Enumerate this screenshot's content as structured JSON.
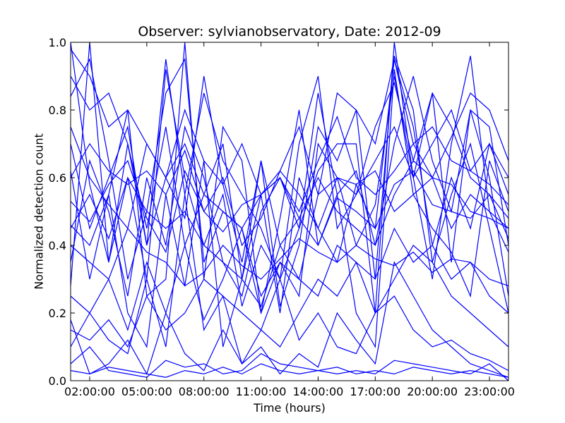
{
  "chart_data": {
    "type": "line",
    "title": "Observer: sylvianobservatory, Date: 2012-09",
    "xlabel": "Time (hours)",
    "ylabel": "Normalized detection count",
    "xlim": [
      "01:00:00",
      "24:00:00"
    ],
    "ylim": [
      0.0,
      1.0
    ],
    "xticks": [
      "02:00:00",
      "05:00:00",
      "08:00:00",
      "11:00:00",
      "14:00:00",
      "17:00:00",
      "20:00:00",
      "23:00:00"
    ],
    "yticks": [
      "0.0",
      "0.2",
      "0.4",
      "0.6",
      "0.8",
      "1.0"
    ],
    "line_color": "#0000ff",
    "grid": false,
    "legend": false,
    "x": [
      "01:00:00",
      "02:00:00",
      "03:00:00",
      "04:00:00",
      "05:00:00",
      "06:00:00",
      "07:00:00",
      "08:00:00",
      "09:00:00",
      "10:00:00",
      "11:00:00",
      "12:00:00",
      "13:00:00",
      "14:00:00",
      "15:00:00",
      "16:00:00",
      "17:00:00",
      "18:00:00",
      "19:00:00",
      "20:00:00",
      "21:00:00",
      "22:00:00",
      "23:00:00",
      "24:00:00"
    ],
    "series": [
      {
        "values": [
          0.28,
          1.0,
          0.35,
          0.6,
          0.3,
          0.92,
          0.6,
          0.4,
          0.55,
          0.22,
          0.4,
          0.3,
          0.45,
          0.62,
          0.7,
          0.7,
          0.2,
          1.0,
          0.6,
          0.85,
          0.35,
          0.8,
          0.6,
          0.25
        ]
      },
      {
        "values": [
          0.46,
          0.4,
          0.55,
          0.2,
          0.1,
          0.55,
          0.28,
          0.65,
          0.1,
          0.3,
          0.55,
          0.2,
          0.6,
          0.45,
          0.35,
          0.58,
          0.45,
          0.95,
          0.75,
          0.4,
          0.6,
          0.45,
          0.7,
          0.55
        ]
      },
      {
        "values": [
          0.84,
          0.95,
          0.65,
          0.3,
          0.5,
          0.85,
          0.95,
          0.35,
          0.5,
          0.45,
          0.2,
          0.35,
          0.25,
          0.7,
          0.6,
          0.4,
          0.52,
          0.9,
          0.6,
          0.3,
          0.7,
          0.96,
          0.5,
          0.45
        ]
      },
      {
        "values": [
          0.18,
          0.02,
          0.05,
          0.12,
          0.02,
          0.2,
          0.08,
          0.03,
          0.15,
          0.05,
          0.1,
          0.02,
          0.08,
          0.04,
          0.2,
          0.12,
          0.05,
          0.35,
          0.25,
          0.15,
          0.1,
          0.05,
          0.03,
          0.01
        ]
      },
      {
        "values": [
          0.05,
          0.1,
          0.03,
          0.02,
          0.01,
          0.06,
          0.04,
          0.05,
          0.02,
          0.03,
          0.08,
          0.05,
          0.04,
          0.03,
          0.02,
          0.03,
          0.02,
          0.06,
          0.05,
          0.04,
          0.03,
          0.02,
          0.05,
          0.0
        ]
      },
      {
        "values": [
          0.62,
          0.3,
          0.55,
          0.8,
          0.25,
          0.3,
          1.0,
          0.3,
          0.75,
          0.65,
          0.2,
          0.48,
          0.8,
          0.4,
          0.55,
          0.2,
          0.1,
          0.92,
          0.55,
          0.45,
          0.38,
          0.25,
          0.65,
          0.5
        ]
      },
      {
        "values": [
          1.0,
          0.58,
          0.35,
          0.7,
          0.45,
          0.75,
          0.4,
          0.55,
          0.7,
          0.3,
          0.65,
          0.4,
          0.3,
          0.55,
          0.85,
          0.8,
          0.3,
          0.96,
          0.8,
          0.35,
          0.55,
          0.7,
          0.45,
          0.2
        ]
      },
      {
        "values": [
          0.1,
          0.2,
          0.12,
          0.08,
          0.3,
          0.1,
          0.55,
          0.15,
          0.25,
          0.05,
          0.15,
          0.3,
          0.12,
          0.2,
          0.1,
          0.08,
          0.2,
          0.25,
          0.15,
          0.1,
          0.12,
          0.08,
          0.06,
          0.03
        ]
      },
      {
        "values": [
          0.35,
          0.65,
          0.5,
          0.25,
          0.6,
          0.4,
          0.75,
          0.6,
          0.35,
          0.25,
          0.5,
          0.6,
          0.45,
          0.85,
          0.55,
          0.62,
          0.4,
          0.7,
          0.9,
          0.65,
          0.5,
          0.8,
          0.75,
          0.4
        ]
      },
      {
        "values": [
          0.7,
          0.45,
          0.6,
          0.75,
          0.4,
          0.95,
          0.55,
          0.85,
          0.65,
          0.55,
          0.45,
          0.3,
          0.7,
          0.9,
          0.45,
          0.55,
          0.75,
          0.88,
          0.65,
          0.85,
          0.75,
          0.6,
          0.55,
          0.48
        ]
      },
      {
        "values": [
          0.53,
          0.47,
          0.58,
          0.65,
          0.48,
          0.38,
          0.62,
          0.5,
          0.44,
          0.52,
          0.55,
          0.6,
          0.48,
          0.4,
          0.54,
          0.5,
          0.45,
          0.58,
          0.62,
          0.52,
          0.5,
          0.48,
          0.55,
          0.42
        ]
      },
      {
        "values": [
          0.4,
          0.35,
          0.3,
          0.45,
          0.38,
          0.35,
          0.28,
          0.32,
          0.4,
          0.34,
          0.3,
          0.36,
          0.42,
          0.38,
          0.35,
          0.4,
          0.36,
          0.34,
          0.38,
          0.32,
          0.36,
          0.35,
          0.3,
          0.28
        ]
      },
      {
        "values": [
          0.9,
          0.8,
          0.85,
          0.7,
          0.4,
          0.6,
          0.8,
          0.65,
          0.58,
          0.35,
          0.65,
          0.22,
          0.4,
          0.75,
          0.65,
          0.8,
          0.7,
          0.95,
          0.7,
          0.6,
          0.72,
          0.85,
          0.8,
          0.65
        ]
      },
      {
        "values": [
          0.25,
          0.2,
          0.3,
          0.15,
          0.35,
          0.2,
          0.4,
          0.18,
          0.3,
          0.45,
          0.25,
          0.35,
          0.3,
          0.25,
          0.4,
          0.35,
          0.3,
          0.45,
          0.35,
          0.4,
          0.3,
          0.35,
          0.25,
          0.2
        ]
      },
      {
        "values": [
          0.03,
          0.02,
          0.04,
          0.03,
          0.02,
          0.01,
          0.03,
          0.02,
          0.04,
          0.02,
          0.05,
          0.03,
          0.02,
          0.03,
          0.04,
          0.02,
          0.03,
          0.02,
          0.04,
          0.03,
          0.02,
          0.03,
          0.02,
          0.01
        ]
      },
      {
        "values": [
          0.6,
          0.7,
          0.62,
          0.58,
          0.62,
          0.55,
          0.68,
          0.5,
          0.6,
          0.4,
          0.48,
          0.62,
          0.55,
          0.45,
          0.6,
          0.58,
          0.62,
          0.5,
          0.55,
          0.6,
          0.58,
          0.5,
          0.48,
          0.45
        ]
      },
      {
        "values": [
          0.15,
          0.12,
          0.18,
          0.1,
          0.25,
          0.15,
          0.2,
          0.3,
          0.25,
          0.2,
          0.15,
          0.1,
          0.2,
          0.3,
          0.25,
          0.35,
          0.2,
          0.3,
          0.4,
          0.35,
          0.25,
          0.2,
          0.15,
          0.1
        ]
      },
      {
        "values": [
          0.75,
          0.6,
          0.52,
          0.45,
          0.7,
          0.6,
          0.48,
          0.9,
          0.58,
          0.7,
          0.55,
          0.62,
          0.75,
          0.55,
          0.6,
          0.55,
          0.65,
          0.75,
          0.6,
          0.7,
          0.8,
          0.62,
          0.7,
          0.6
        ]
      },
      {
        "values": [
          0.45,
          0.55,
          0.42,
          0.6,
          0.5,
          0.45,
          0.5,
          0.4,
          0.35,
          0.3,
          0.22,
          0.4,
          0.48,
          0.6,
          0.5,
          0.45,
          0.4,
          0.55,
          0.65,
          0.6,
          0.45,
          0.55,
          0.5,
          0.38
        ]
      },
      {
        "values": [
          0.98,
          0.9,
          0.75,
          0.8,
          0.7,
          0.6,
          0.7,
          0.55,
          0.5,
          0.45,
          0.55,
          0.6,
          0.5,
          0.65,
          0.78,
          0.6,
          0.55,
          0.62,
          0.7,
          0.75,
          0.65,
          0.62,
          0.58,
          0.52
        ]
      }
    ]
  }
}
